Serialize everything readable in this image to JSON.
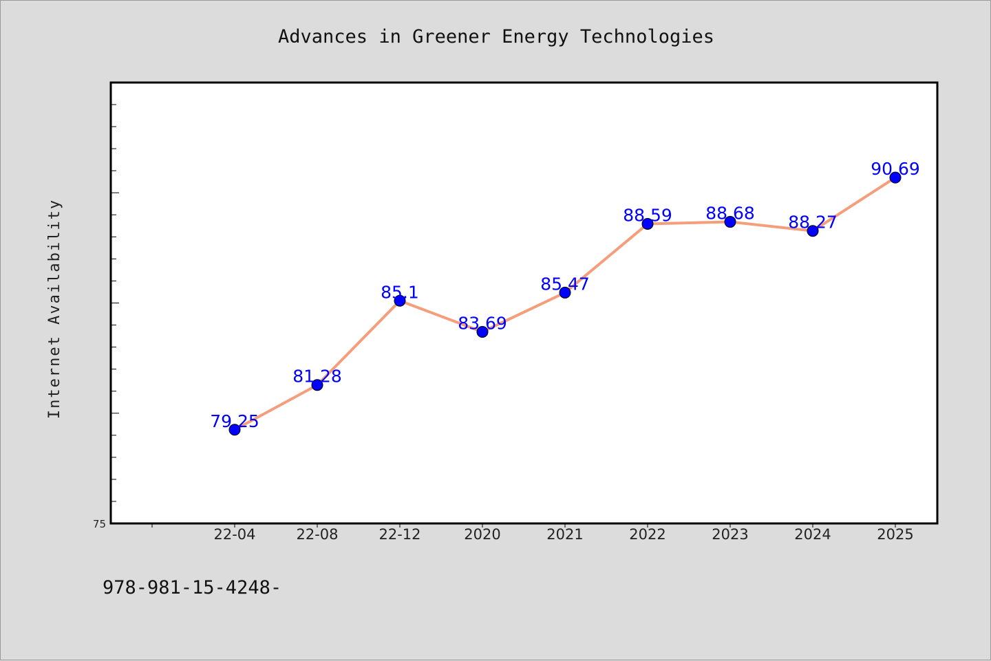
{
  "chart_data": {
    "type": "line",
    "title": "Advances in Greener Energy Technologies",
    "xlabel": "",
    "ylabel": "Internet Availability",
    "categories": [
      "22-04",
      "22-08",
      "22-12",
      "2020",
      "2021",
      "2022",
      "2023",
      "2024",
      "2025"
    ],
    "series": [
      {
        "values": [
          79.25,
          81.28,
          85.1,
          83.69,
          85.47,
          88.59,
          88.68,
          88.27,
          90.69
        ],
        "data_labels": [
          "79.25",
          "81.28",
          "85.1",
          "83.69",
          "85.47",
          "88.59",
          "88.68",
          "88.27",
          "90.69"
        ],
        "line_color": "#f59e7c",
        "marker_color": "#0000ff",
        "label_color": "#0000ff"
      }
    ],
    "ylim": [
      75,
      95
    ],
    "ytick_labels": [
      "75"
    ],
    "grid": false,
    "plot_background": "#ffffff",
    "figure_background": "#dcdcdc"
  },
  "footer_text": "978-981-15-4248-"
}
